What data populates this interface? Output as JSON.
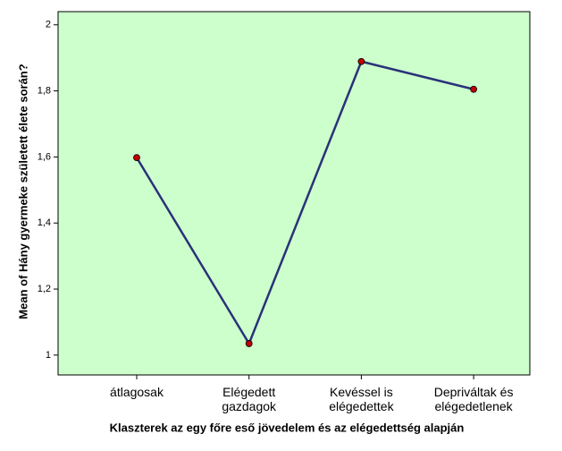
{
  "chart_data": {
    "type": "line",
    "x_label": "Klaszterek az egy főre eső jövedelem és az elégedettség alapján",
    "y_label": "Mean of Hány gyermeke született élete során?",
    "categories": [
      "átlagosak",
      "Elégedett gazdagok",
      "Kevéssel is elégedettek",
      "Depriváltak és elégedetlenek"
    ],
    "series": [
      {
        "color": "#2a3178",
        "marker_color": "#c00000",
        "values": [
          1.598,
          1.035,
          1.889,
          1.805
        ]
      }
    ],
    "ylim": [
      0.94,
      2.04
    ],
    "yticks": [
      1,
      {
        "value": 1.2,
        "label": "1,2"
      },
      {
        "value": 1.4,
        "label": "1,4"
      },
      {
        "value": 1.6,
        "label": "1,6"
      },
      {
        "value": 1.8,
        "label": "1,8"
      },
      2
    ],
    "background": "#ccffcc"
  }
}
